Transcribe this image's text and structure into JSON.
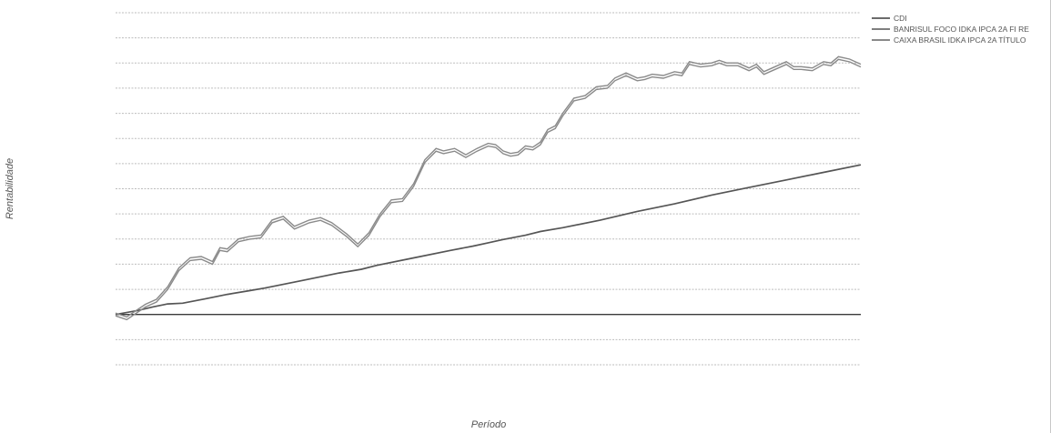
{
  "chart_data": {
    "type": "line",
    "title": "",
    "xlabel": "Período",
    "ylabel": "Rentabilidade",
    "xlim": [
      0,
      100
    ],
    "ylim": [
      -2,
      12
    ],
    "grid": true,
    "legend_position": "top-right",
    "series": [
      {
        "name": "CDI",
        "color": "#3a3a3a",
        "x": [
          0,
          100
        ],
        "values": [
          0,
          0
        ]
      },
      {
        "name": "BANRISUL FOCO IDKA IPCA 2A FI RE",
        "color": "#555555",
        "x": [
          0,
          3,
          5,
          7,
          9,
          12,
          15,
          18,
          20,
          25,
          30,
          33,
          35,
          40,
          45,
          48,
          50,
          52,
          55,
          57,
          60,
          65,
          70,
          75,
          80,
          85,
          90,
          95,
          100
        ],
        "values": [
          0,
          0.16,
          0.3,
          0.42,
          0.45,
          0.62,
          0.8,
          0.95,
          1.05,
          1.35,
          1.65,
          1.8,
          1.95,
          2.25,
          2.55,
          2.72,
          2.85,
          2.98,
          3.15,
          3.3,
          3.45,
          3.75,
          4.1,
          4.4,
          4.75,
          5.05,
          5.35,
          5.65,
          5.95
        ]
      },
      {
        "name": "CAIXA BRASIL IDKA IPCA 2A TÍTULO",
        "color": "#8a8a8a",
        "x": [
          0,
          1.5,
          2.5,
          4,
          5.5,
          7,
          8.5,
          10,
          11.5,
          13,
          14,
          15,
          16.5,
          18,
          19.5,
          21,
          22.5,
          24,
          26,
          27.5,
          29,
          31,
          32.5,
          34,
          35.5,
          37,
          38.5,
          40,
          41.5,
          43,
          44,
          45.5,
          47,
          48.5,
          50,
          51,
          52,
          53,
          54,
          55,
          56,
          57,
          58,
          59,
          60,
          61.5,
          63,
          64.5,
          66,
          67,
          68.5,
          70,
          71,
          72,
          73.5,
          75,
          76,
          77,
          78.5,
          80,
          81,
          82,
          83.5,
          85,
          86,
          87,
          88.5,
          90,
          91,
          92,
          93.5,
          95,
          96,
          97,
          98.5,
          100
        ],
        "values": [
          0,
          -0.15,
          0.05,
          0.35,
          0.55,
          1.05,
          1.8,
          2.2,
          2.25,
          2.05,
          2.6,
          2.55,
          2.95,
          3.05,
          3.1,
          3.7,
          3.85,
          3.45,
          3.7,
          3.8,
          3.6,
          3.15,
          2.75,
          3.2,
          3.95,
          4.5,
          4.55,
          5.15,
          6.1,
          6.55,
          6.45,
          6.55,
          6.3,
          6.55,
          6.75,
          6.7,
          6.45,
          6.35,
          6.4,
          6.65,
          6.6,
          6.8,
          7.3,
          7.45,
          7.95,
          8.55,
          8.65,
          9.0,
          9.05,
          9.35,
          9.55,
          9.35,
          9.4,
          9.5,
          9.45,
          9.6,
          9.55,
          10.0,
          9.9,
          9.95,
          10.05,
          9.95,
          9.95,
          9.75,
          9.9,
          9.6,
          9.8,
          10.0,
          9.8,
          9.8,
          9.75,
          10.0,
          9.95,
          10.2,
          10.1,
          9.9
        ]
      }
    ]
  }
}
